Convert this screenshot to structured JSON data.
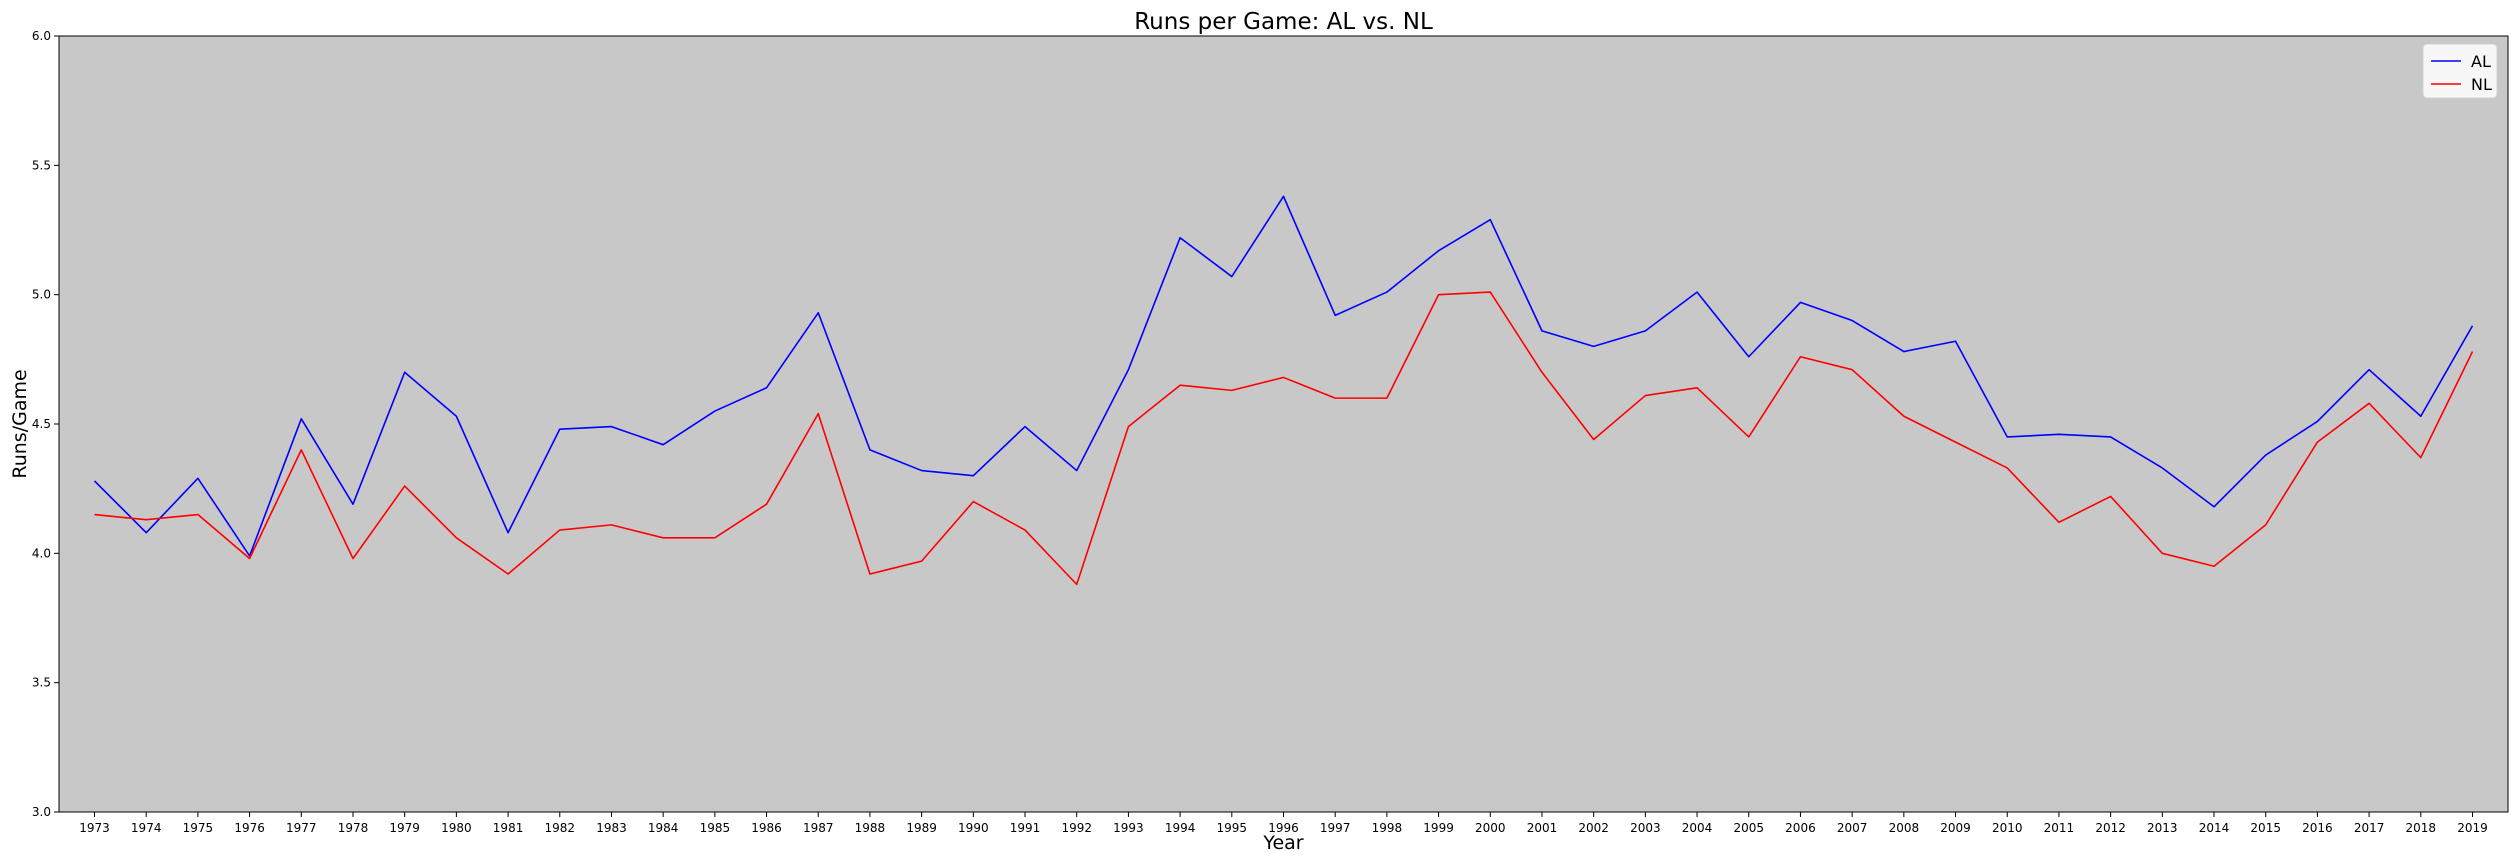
{
  "chart_data": {
    "type": "line",
    "title": "Runs per Game: AL vs. NL",
    "xlabel": "Year",
    "ylabel": "Runs/Game",
    "ylim": [
      3.0,
      6.0
    ],
    "yticks": [
      "3.0",
      "3.5",
      "4.0",
      "4.5",
      "5.0",
      "5.5",
      "6.0"
    ],
    "grid": false,
    "legend_position": "top-right",
    "background_color": "#c8c8c8",
    "x": [
      "1973",
      "1974",
      "1975",
      "1976",
      "1977",
      "1978",
      "1979",
      "1980",
      "1981",
      "1982",
      "1983",
      "1984",
      "1985",
      "1986",
      "1987",
      "1988",
      "1989",
      "1990",
      "1991",
      "1992",
      "1993",
      "1994",
      "1995",
      "1996",
      "1997",
      "1998",
      "1999",
      "2000",
      "2001",
      "2002",
      "2003",
      "2004",
      "2005",
      "2006",
      "2007",
      "2008",
      "2009",
      "2010",
      "2011",
      "2012",
      "2013",
      "2014",
      "2015",
      "2016",
      "2017",
      "2018",
      "2019"
    ],
    "series": [
      {
        "name": "AL",
        "color": "#0000ff",
        "values": [
          4.28,
          4.08,
          4.29,
          3.99,
          4.52,
          4.19,
          4.7,
          4.53,
          4.08,
          4.48,
          4.49,
          4.42,
          4.55,
          4.64,
          4.93,
          4.4,
          4.32,
          4.3,
          4.49,
          4.32,
          4.71,
          5.22,
          5.07,
          5.38,
          4.92,
          5.01,
          5.17,
          5.29,
          4.86,
          4.8,
          4.86,
          5.01,
          4.76,
          4.97,
          4.9,
          4.78,
          4.82,
          4.45,
          4.46,
          4.45,
          4.33,
          4.18,
          4.38,
          4.51,
          4.71,
          4.53,
          4.88
        ]
      },
      {
        "name": "NL",
        "color": "#ff0000",
        "values": [
          4.15,
          4.13,
          4.15,
          3.98,
          4.4,
          3.98,
          4.26,
          4.06,
          3.92,
          4.09,
          4.11,
          4.06,
          4.06,
          4.19,
          4.54,
          3.92,
          3.97,
          4.2,
          4.09,
          3.88,
          4.49,
          4.65,
          4.63,
          4.68,
          4.6,
          4.6,
          5.0,
          5.01,
          4.7,
          4.44,
          4.61,
          4.64,
          4.45,
          4.76,
          4.71,
          4.53,
          4.43,
          4.33,
          4.12,
          4.22,
          4.0,
          3.95,
          4.11,
          4.43,
          4.58,
          4.37,
          4.78
        ]
      }
    ]
  }
}
